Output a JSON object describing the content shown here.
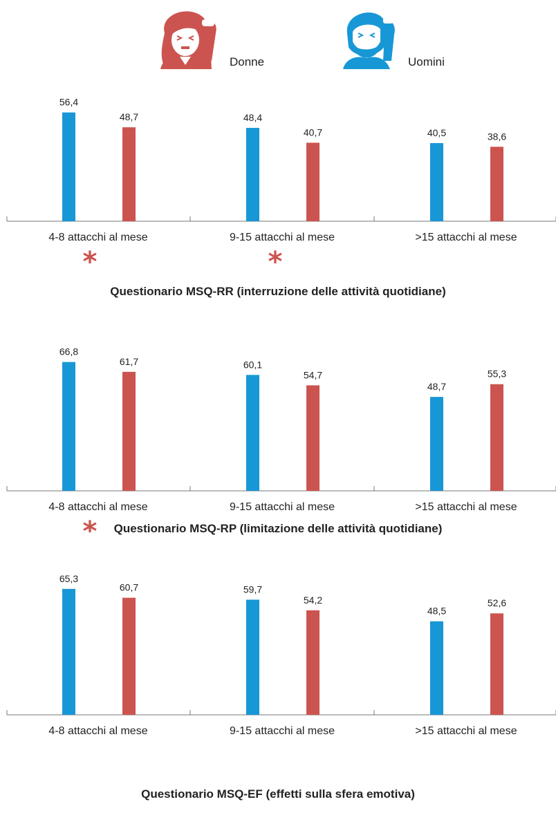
{
  "legend": {
    "women_label": "Donne",
    "men_label": "Uomini",
    "women_icon": "woman-headache-icon",
    "men_icon": "man-headache-icon",
    "women_color": "#cc5450",
    "men_color": "#1897d6"
  },
  "significance_marker": "*",
  "chart_data": [
    {
      "type": "bar",
      "title": "Questionario MSQ-RR (interruzione delle attività quotidiane)",
      "categories": [
        "4-8 attacchi al mese",
        "9-15 attacchi al mese",
        ">15 attacchi al mese"
      ],
      "series": [
        {
          "name": "Uomini",
          "color": "#1897d6",
          "values": [
            56.4,
            48.4,
            40.5
          ],
          "labels": [
            "56,4",
            "48,4",
            "40,5"
          ]
        },
        {
          "name": "Donne",
          "color": "#cc5450",
          "values": [
            48.7,
            40.7,
            38.6
          ],
          "labels": [
            "48,7",
            "40,7",
            "38,6"
          ]
        }
      ],
      "significant": [
        "4-8 attacchi al mese",
        "9-15 attacchi al mese"
      ],
      "ylim": [
        0,
        75
      ],
      "grid": false
    },
    {
      "type": "bar",
      "title": "Questionario MSQ-RP (limitazione delle attività quotidiane)",
      "categories": [
        "4-8 attacchi al mese",
        "9-15 attacchi al mese",
        ">15 attacchi al mese"
      ],
      "series": [
        {
          "name": "Uomini",
          "color": "#1897d6",
          "values": [
            66.8,
            60.1,
            48.7
          ],
          "labels": [
            "66,8",
            "60,1",
            "48,7"
          ]
        },
        {
          "name": "Donne",
          "color": "#cc5450",
          "values": [
            61.7,
            54.7,
            55.3
          ],
          "labels": [
            "61,7",
            "54,7",
            "55,3"
          ]
        }
      ],
      "significant": [
        "4-8 attacchi al mese"
      ],
      "ylim": [
        0,
        75
      ],
      "grid": false
    },
    {
      "type": "bar",
      "title": "Questionario MSQ-EF (effetti sulla sfera emotiva)",
      "categories": [
        "4-8 attacchi al mese",
        "9-15 attacchi al mese",
        ">15 attacchi al mese"
      ],
      "series": [
        {
          "name": "Uomini",
          "color": "#1897d6",
          "values": [
            65.3,
            59.7,
            48.5
          ],
          "labels": [
            "65,3",
            "59,7",
            "48,5"
          ]
        },
        {
          "name": "Donne",
          "color": "#cc5450",
          "values": [
            60.7,
            54.2,
            52.6
          ],
          "labels": [
            "60,7",
            "54,2",
            "52,6"
          ]
        }
      ],
      "significant": [],
      "ylim": [
        0,
        75
      ],
      "grid": false
    }
  ]
}
